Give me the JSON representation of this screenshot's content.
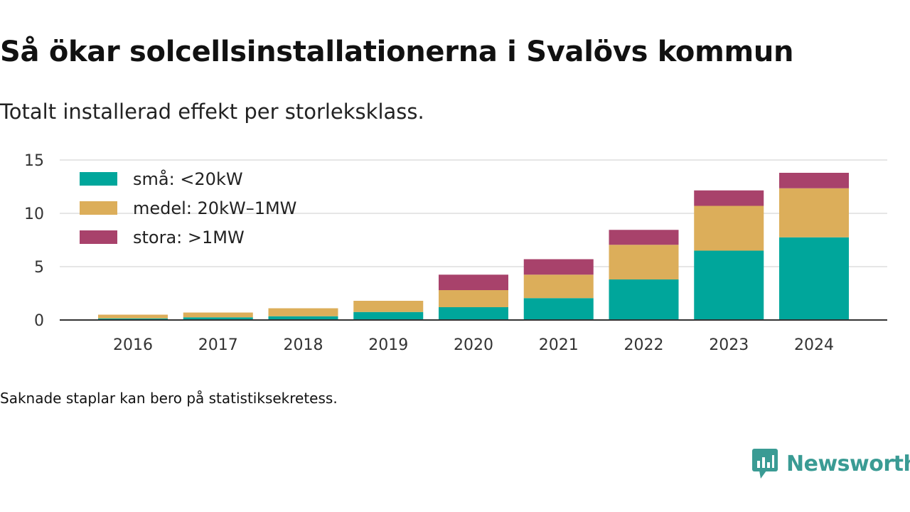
{
  "title": "Så ökar solcellsinstallationerna i Svalövs kommun",
  "subtitle": "Totalt installerad effekt per storleksklass.",
  "note": "Saknade staplar kan bero på statistiksekretess.",
  "brand": {
    "name": "Newsworthy",
    "icon": "newsworthy-logo-icon"
  },
  "colors": {
    "sma": "#00a69b",
    "medel": "#dcae5a",
    "stora": "#a8426b",
    "grid": "#dddddd",
    "axis": "#333333"
  },
  "chart_data": {
    "type": "bar",
    "stacked": true,
    "categories": [
      "2016",
      "2017",
      "2018",
      "2019",
      "2020",
      "2021",
      "2022",
      "2023",
      "2024"
    ],
    "series": [
      {
        "name": "små: <20kW",
        "color": "#00a69b",
        "values": [
          0.15,
          0.25,
          0.35,
          0.75,
          1.2,
          2.05,
          3.8,
          6.5,
          7.75
        ]
      },
      {
        "name": "medel: 20kW–1MW",
        "color": "#dcae5a",
        "values": [
          0.35,
          0.45,
          0.75,
          1.05,
          1.6,
          2.2,
          3.25,
          4.2,
          4.6
        ]
      },
      {
        "name": "stora: >1MW",
        "color": "#a8426b",
        "values": [
          0,
          0,
          0,
          0,
          1.45,
          1.45,
          1.4,
          1.45,
          1.45
        ]
      }
    ],
    "ylim": [
      0,
      15
    ],
    "yticks": [
      0,
      5,
      10,
      15
    ],
    "grid": true,
    "legend": "top-left"
  }
}
